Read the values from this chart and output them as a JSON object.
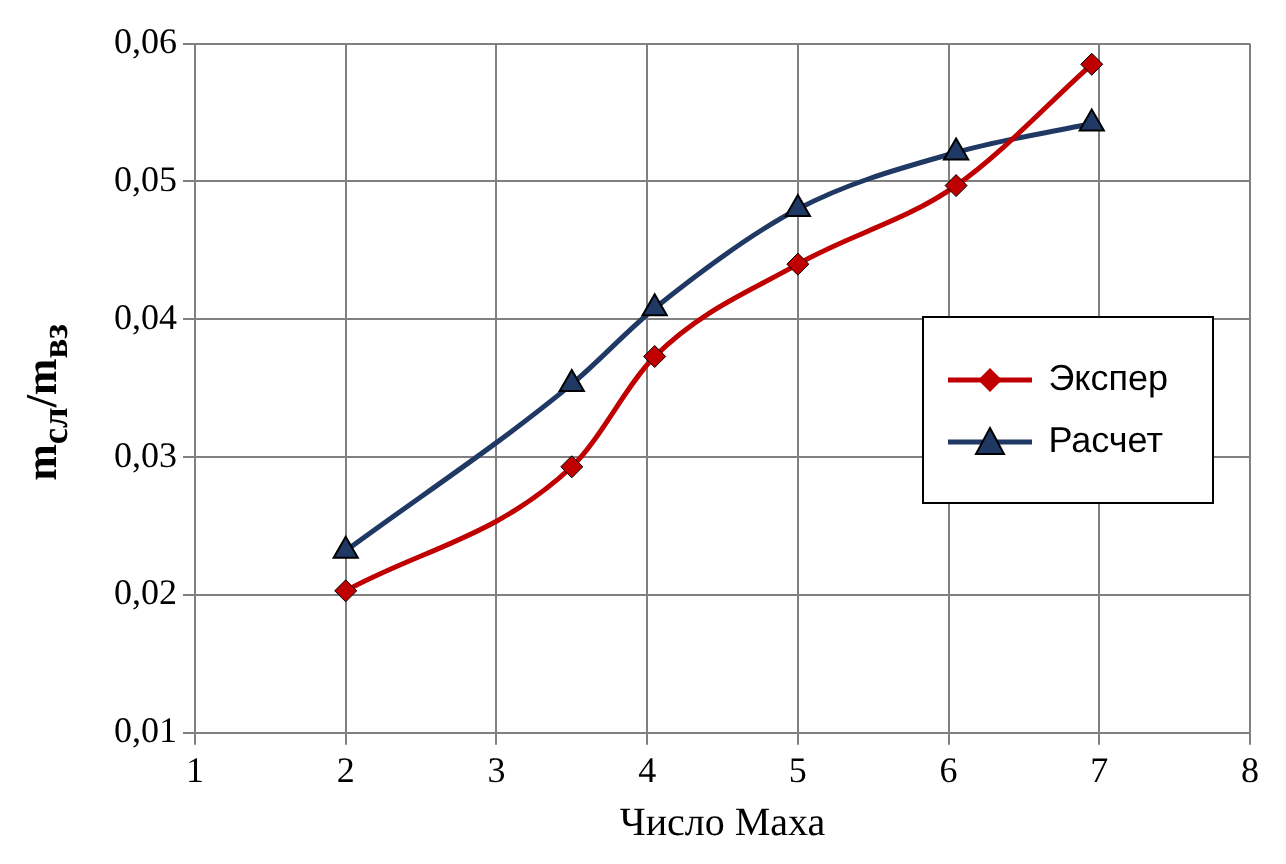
{
  "chart_data": {
    "type": "line",
    "xlabel": "Число Маха",
    "ylabel": "m$_{сл}$/m$_{вз}$",
    "xlim": [
      1,
      8
    ],
    "xticks": [
      1,
      2,
      3,
      4,
      5,
      6,
      7,
      8
    ],
    "ylim": [
      0.01,
      0.06
    ],
    "yticks": [
      {
        "value": 0.01,
        "label": "0,01"
      },
      {
        "value": 0.02,
        "label": "0,02"
      },
      {
        "value": 0.03,
        "label": "0,03"
      },
      {
        "value": 0.04,
        "label": "0,04"
      },
      {
        "value": 0.05,
        "label": "0,05"
      },
      {
        "value": 0.06,
        "label": "0,06"
      }
    ],
    "grid": true,
    "legend": "right",
    "line_style": "solid",
    "series": [
      {
        "name": "Экспер",
        "color": "#c00000",
        "marker": "diamond",
        "x": [
          2,
          3.5,
          4.05,
          5,
          6.05,
          6.95
        ],
        "values": [
          0.0203,
          0.0293,
          0.0373,
          0.044,
          0.0497,
          0.0585
        ]
      },
      {
        "name": "Расчет",
        "color": "#1f3864",
        "marker": "triangle",
        "x": [
          2,
          3.5,
          4.05,
          5,
          6.05,
          6.95
        ],
        "values": [
          0.0232,
          0.0353,
          0.0408,
          0.048,
          0.0521,
          0.0542
        ]
      }
    ]
  }
}
